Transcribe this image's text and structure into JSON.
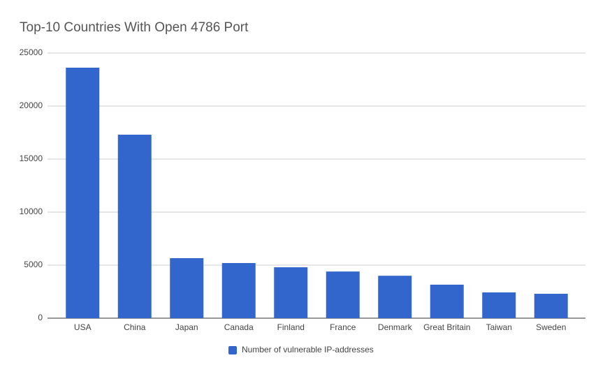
{
  "chart_data": {
    "type": "bar",
    "title": "Top-10 Countries With Open 4786 Port",
    "categories": [
      "USA",
      "China",
      "Japan",
      "Canada",
      "Finland",
      "France",
      "Denmark",
      "Great Britain",
      "Taiwan",
      "Sweden"
    ],
    "series": [
      {
        "name": "Number of vulnerable IP-addresses",
        "color": "#3366cc",
        "values": [
          23620,
          17300,
          5660,
          5200,
          4800,
          4400,
          4000,
          3160,
          2430,
          2300
        ]
      }
    ],
    "ylim": [
      0,
      25000
    ],
    "yticks": [
      0,
      5000,
      10000,
      15000,
      20000,
      25000
    ],
    "grid": true,
    "legend": "bottom"
  }
}
